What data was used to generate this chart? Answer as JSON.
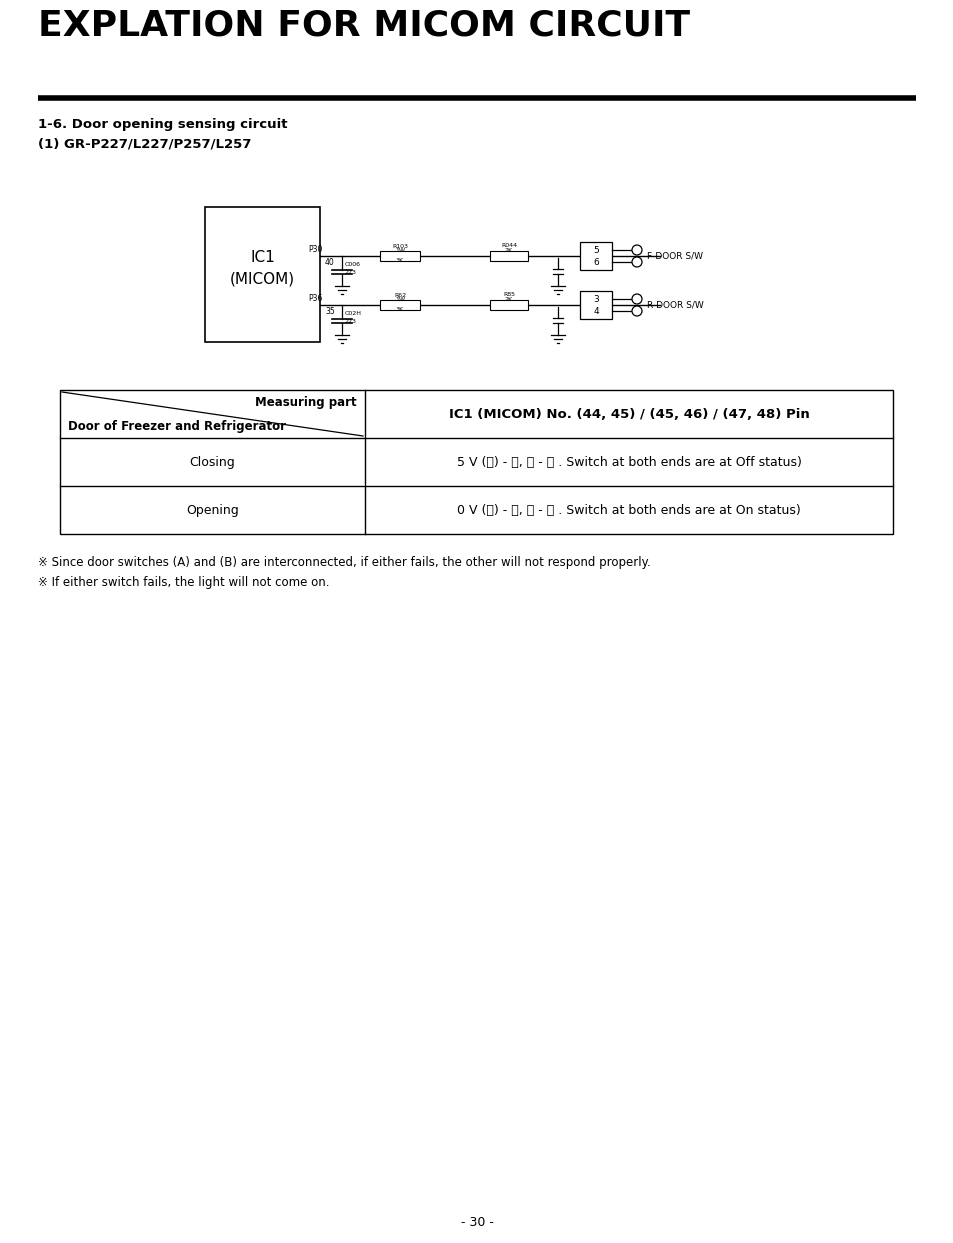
{
  "title": "EXPLATION FOR MICOM CIRCUIT",
  "section": "1-6. Door opening sensing circuit",
  "subsection": "(1) GR-P227/L227/P257/L257",
  "table_header_right": "IC1 (MICOM) No. (44, 45) / (45, 46) / (47, 48) Pin",
  "row1_left": "Closing",
  "row1_right": "5 V (Ⓐ) - Ⓑ, Ⓒ - Ⓓ . Switch at both ends are at Off status)",
  "row2_left": "Opening",
  "row2_right": "0 V (Ⓐ) - Ⓑ, Ⓒ - Ⓓ . Switch at both ends are at On status)",
  "note1": "※ Since door switches (A) and (B) are interconnected, if either fails, the other will not respond properly.",
  "note2": "※ If either switch fails, the light will not come on.",
  "page_number": "- 30 -",
  "bg_color": "#ffffff",
  "text_color": "#000000"
}
